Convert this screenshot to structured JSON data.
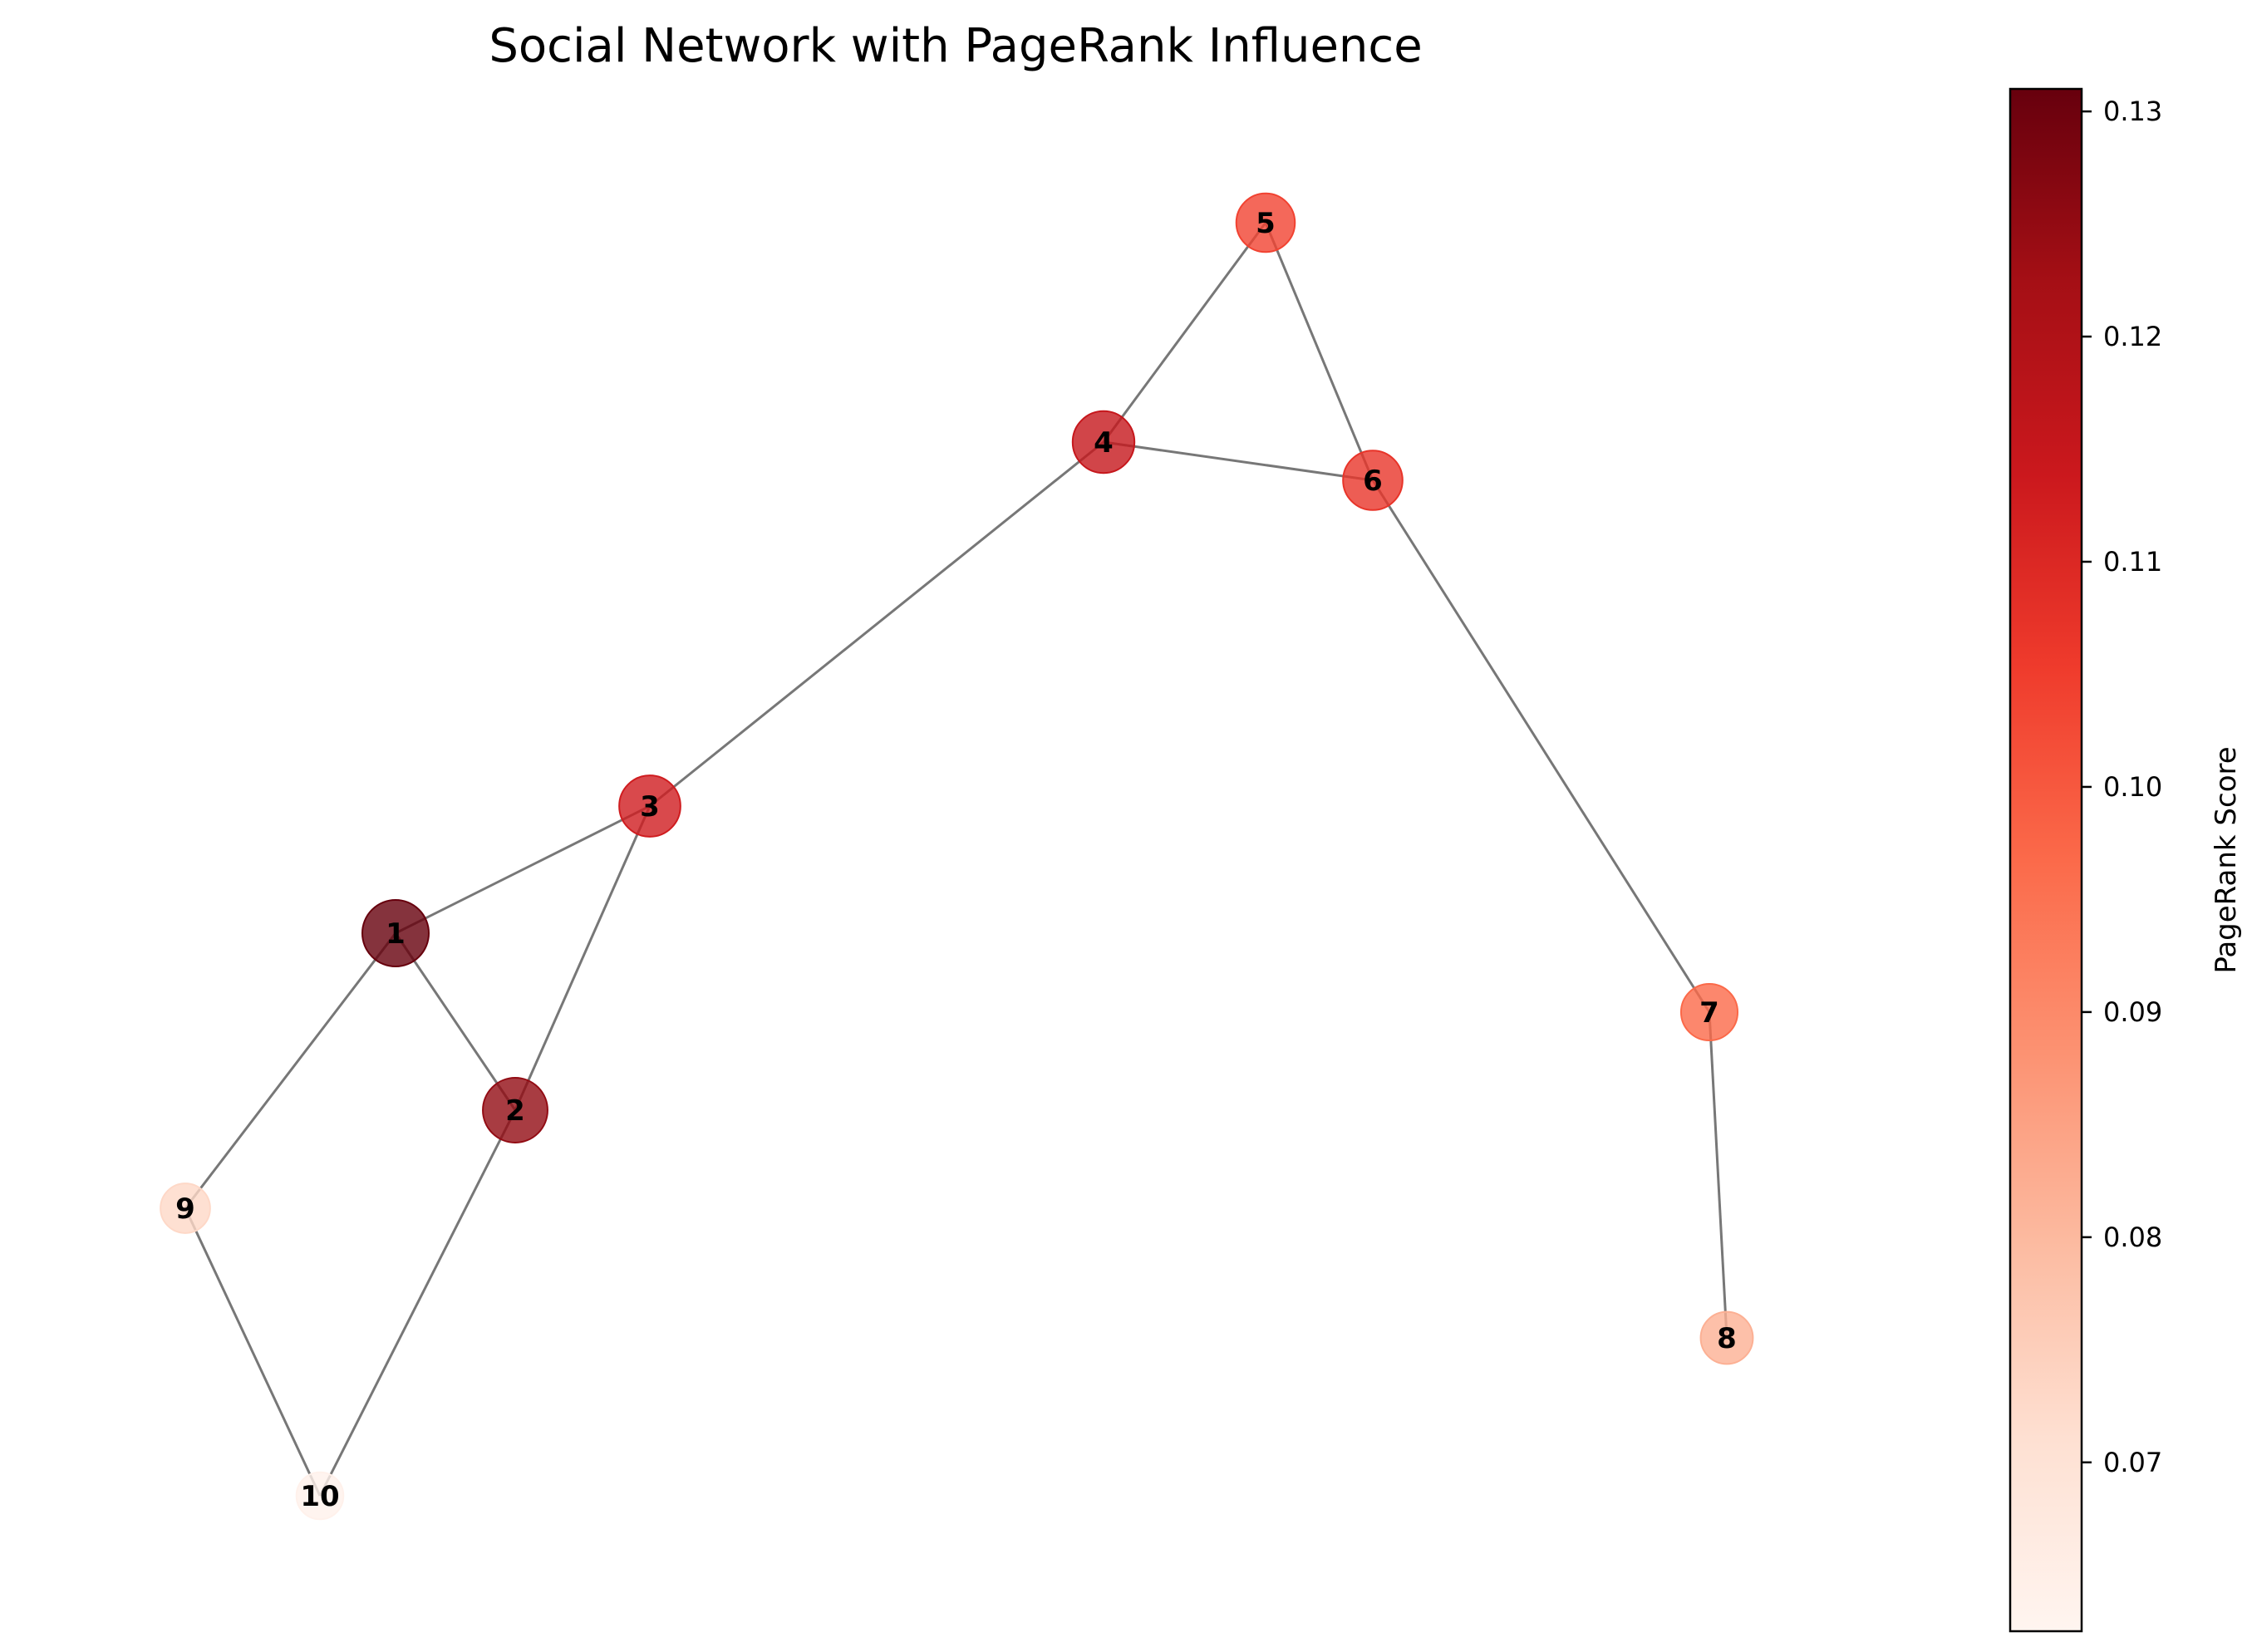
{
  "title": "Social Network with PageRank Influence",
  "colorbar": {
    "label": "PageRank Score",
    "min": 0.0625,
    "max": 0.131,
    "ticks": [
      "0.07",
      "0.08",
      "0.09",
      "0.10",
      "0.11",
      "0.12",
      "0.13"
    ],
    "tick_values": [
      0.07,
      0.08,
      0.09,
      0.1,
      0.11,
      0.12,
      0.13
    ],
    "colormap": "Reds",
    "stops": [
      "#fff5f0",
      "#fee0d2",
      "#fcbba1",
      "#fc9272",
      "#fb6a4a",
      "#ef3b2c",
      "#cb181d",
      "#a50f15",
      "#67000d"
    ]
  },
  "edge_color": "#777777",
  "nodes": [
    {
      "id": "1",
      "label": "1",
      "pagerank": 0.131
    },
    {
      "id": "2",
      "label": "2",
      "pagerank": 0.125
    },
    {
      "id": "3",
      "label": "3",
      "pagerank": 0.113
    },
    {
      "id": "4",
      "label": "4",
      "pagerank": 0.115
    },
    {
      "id": "5",
      "label": "5",
      "pagerank": 0.104
    },
    {
      "id": "6",
      "label": "6",
      "pagerank": 0.107
    },
    {
      "id": "7",
      "label": "7",
      "pagerank": 0.097
    },
    {
      "id": "8",
      "label": "8",
      "pagerank": 0.082
    },
    {
      "id": "9",
      "label": "9",
      "pagerank": 0.073
    },
    {
      "id": "10",
      "label": "10",
      "pagerank": 0.064
    }
  ],
  "edges": [
    [
      "1",
      "2"
    ],
    [
      "1",
      "3"
    ],
    [
      "1",
      "9"
    ],
    [
      "2",
      "3"
    ],
    [
      "2",
      "10"
    ],
    [
      "3",
      "4"
    ],
    [
      "4",
      "5"
    ],
    [
      "4",
      "6"
    ],
    [
      "5",
      "6"
    ],
    [
      "6",
      "7"
    ],
    [
      "7",
      "8"
    ],
    [
      "9",
      "10"
    ]
  ]
}
